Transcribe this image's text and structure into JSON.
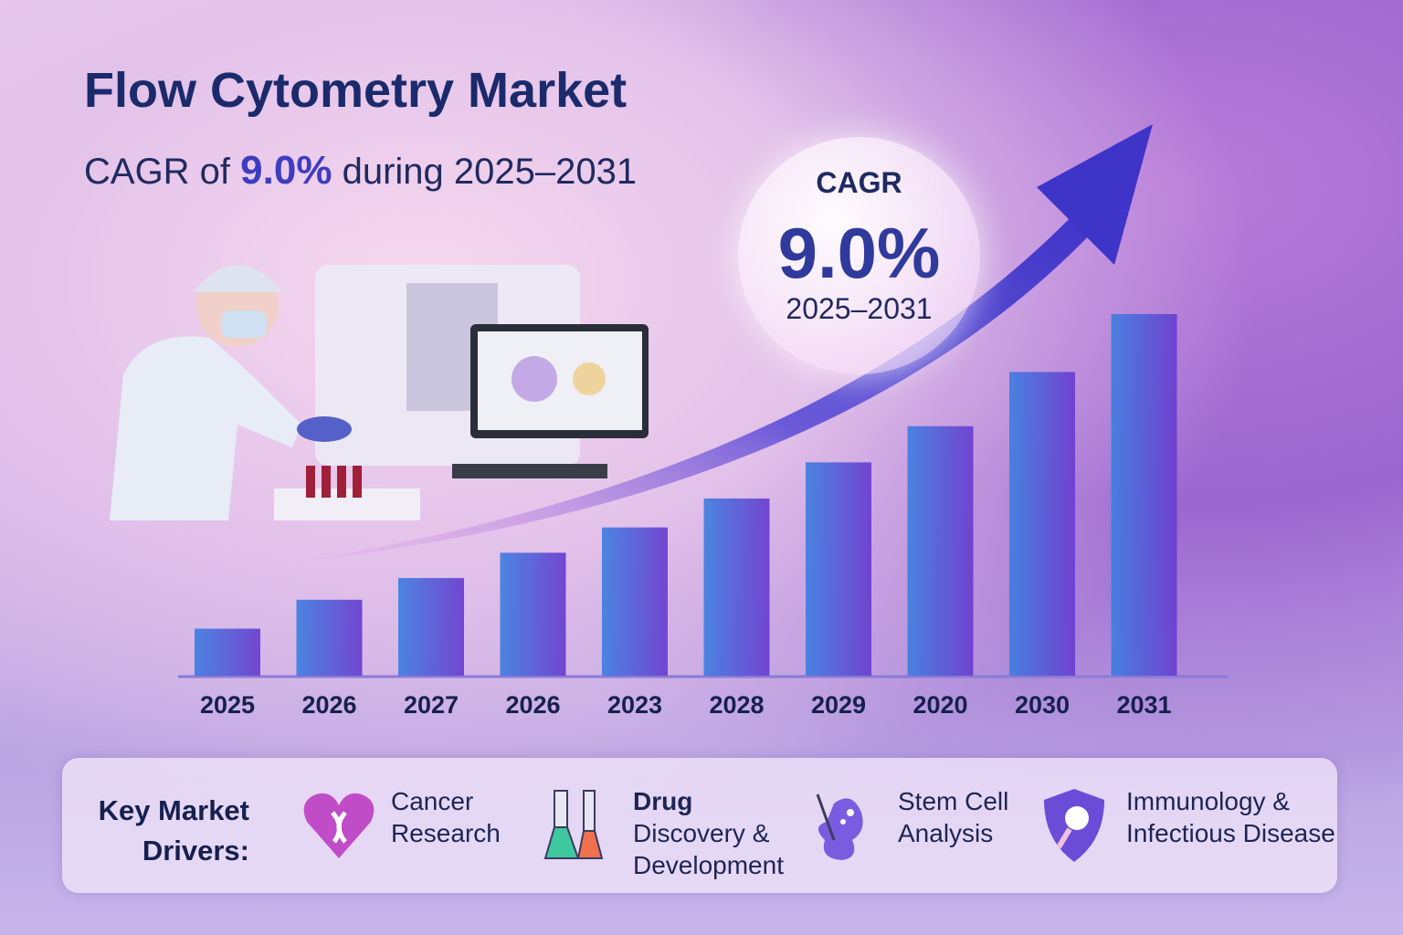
{
  "header": {
    "title": "Flow Cytometry Market",
    "subtitle_prefix": "CAGR of",
    "subtitle_value": "9.0%",
    "subtitle_suffix": "during 2025–2031"
  },
  "cagr_badge": {
    "label": "CAGR",
    "value": "9.0%",
    "period": "2025–2031"
  },
  "chart_data": {
    "type": "bar",
    "title": "",
    "xlabel": "",
    "ylabel": "",
    "categories": [
      "2025",
      "2026",
      "2027",
      "2026",
      "2023",
      "2028",
      "2029",
      "2020",
      "2030",
      "2031"
    ],
    "values": [
      13,
      21,
      27,
      34,
      41,
      49,
      59,
      69,
      84,
      100
    ],
    "value_scale": "relative (tallest bar = 100); no y-axis printed",
    "grid": false,
    "trend_arrow": true,
    "colors": {
      "bar_start": "#3f7fe0",
      "bar_end": "#6a3ccf",
      "arrow": "#4a3fcf"
    }
  },
  "drivers": {
    "heading_line1": "Key Market",
    "heading_line2": "Drivers:",
    "items": [
      {
        "icon": "heart-ribbon-icon",
        "line1": "Cancer",
        "line2": "Research",
        "line3": ""
      },
      {
        "icon": "flask-icon",
        "line1": "Drug",
        "line2": "Discovery &",
        "line3": "Development"
      },
      {
        "icon": "stem-cell-icon",
        "line1": "Stem Cell",
        "line2": "Analysis",
        "line3": ""
      },
      {
        "icon": "shield-magnifier-icon",
        "line1": "Immunology &",
        "line2": "Infectious Disease",
        "line3": ""
      }
    ]
  }
}
